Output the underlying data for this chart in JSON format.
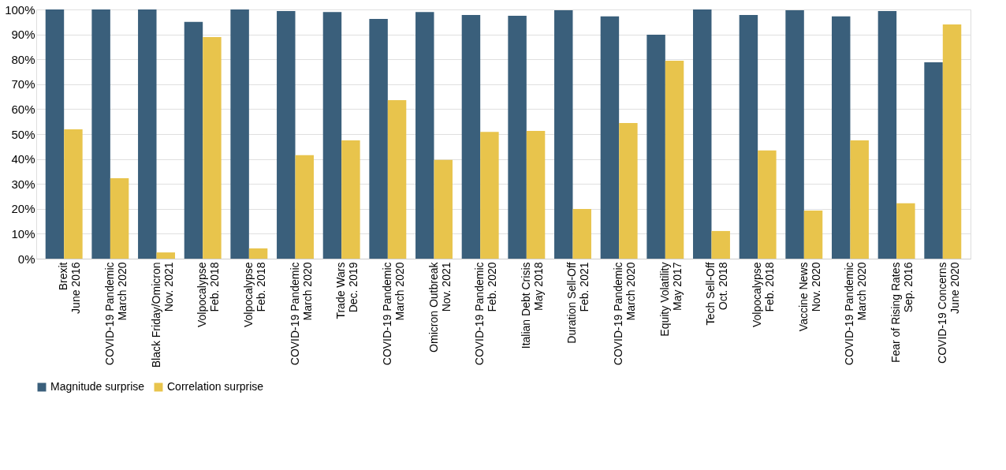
{
  "chart_data": {
    "type": "bar",
    "categories": [
      "Brexit\nJune 2016",
      "COVID-19 Pandemic\nMarch 2020",
      "Black Friday/Omicron\nNov. 2021",
      "Volpocalypse\nFeb. 2018",
      "Volpocalypse\nFeb. 2018",
      "COVID-19 Pandemic\nMarch 2020",
      "Trade Wars\nDec. 2019",
      "COVID-19 Pandemic\nMarch 2020",
      "Omicron Outbreak\nNov. 2021",
      "COVID-19 Pandemic\nFeb. 2020",
      "Italian Debt Crisis\nMay 2018",
      "Duration Sell-Off\nFeb. 2021",
      "COVID-19 Pandemic\nMarch 2020",
      "Equity Volatility\nMay 2017",
      "Tech Sell-Off\nOct. 2018",
      "Volpocalypse\nFeb. 2018",
      "Vaccine News\nNov. 2020",
      "COVID-19 Pandemic\nMarch 2020",
      "Fear of Rising Rates\nSep. 2016",
      "COVID-19 Concerns\nJune 2020"
    ],
    "series": [
      {
        "name": "Magnitude surprise",
        "color": "#3a5f7b",
        "values": [
          100,
          100,
          100,
          95,
          100,
          99.4,
          99,
          96.2,
          99,
          97.8,
          97.5,
          99.7,
          97.2,
          89.9,
          100,
          97.8,
          99.7,
          97.2,
          99.4,
          78.8
        ]
      },
      {
        "name": "Correlation surprise",
        "color": "#e8c44c",
        "values": [
          51.9,
          32.3,
          2.5,
          88.9,
          4.1,
          41.5,
          47.5,
          63.6,
          39.6,
          50.9,
          51.3,
          19.9,
          54.4,
          79.4,
          11.1,
          43.4,
          19.3,
          47.5,
          22.2,
          94
        ]
      }
    ],
    "ylim": [
      0,
      100
    ],
    "yticks": [
      {
        "value": 0,
        "label": "0%"
      },
      {
        "value": 10,
        "label": "10%"
      },
      {
        "value": 20,
        "label": "20%"
      },
      {
        "value": 30,
        "label": "30%"
      },
      {
        "value": 40,
        "label": "40%"
      },
      {
        "value": 50,
        "label": "50%"
      },
      {
        "value": 60,
        "label": "60%"
      },
      {
        "value": 70,
        "label": "70%"
      },
      {
        "value": 80,
        "label": "80%"
      },
      {
        "value": 90,
        "label": "90%"
      },
      {
        "value": 100,
        "label": "100%"
      }
    ],
    "grid": "y",
    "legend": "bottom"
  }
}
